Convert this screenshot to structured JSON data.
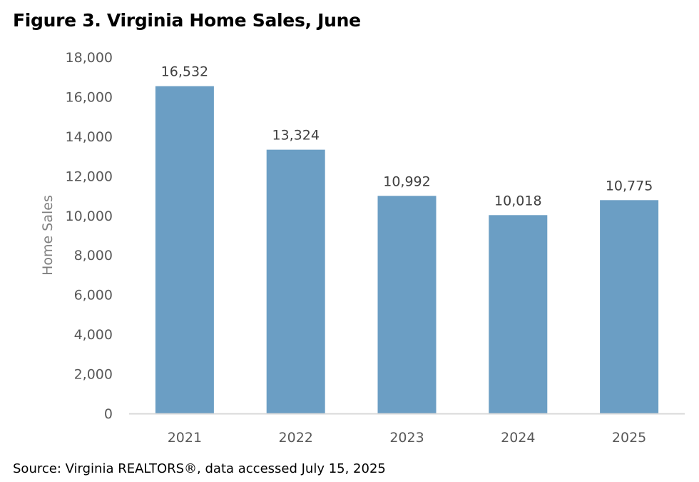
{
  "chart_data": {
    "type": "bar",
    "title": "Figure 3. Virginia Home Sales, June",
    "xlabel": "",
    "ylabel": "Home Sales",
    "categories": [
      "2021",
      "2022",
      "2023",
      "2024",
      "2025"
    ],
    "values": [
      16532,
      13324,
      10992,
      10018,
      10775
    ],
    "data_labels": [
      "16,532",
      "13,324",
      "10,992",
      "10,018",
      "10,775"
    ],
    "ylim": [
      0,
      18000
    ],
    "yticks": [
      0,
      2000,
      4000,
      6000,
      8000,
      10000,
      12000,
      14000,
      16000,
      18000
    ],
    "ytick_labels": [
      "0",
      "2,000",
      "4,000",
      "6,000",
      "8,000",
      "10,000",
      "12,000",
      "14,000",
      "16,000",
      "18,000"
    ],
    "grid": false,
    "bar_color": "#6b9ec4",
    "source": "Source: Virginia REALTORS®, data accessed July 15, 2025"
  }
}
